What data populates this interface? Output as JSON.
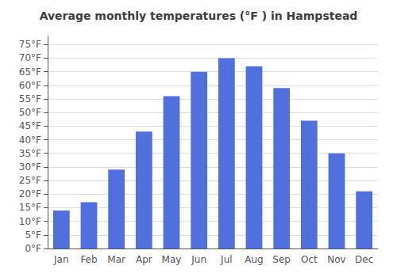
{
  "chart_data": {
    "type": "bar",
    "title": "Average monthly temperatures (°F ) in Hampstead",
    "categories": [
      "Jan",
      "Feb",
      "Mar",
      "Apr",
      "May",
      "Jun",
      "Jul",
      "Aug",
      "Sep",
      "Oct",
      "Nov",
      "Dec"
    ],
    "values": [
      14,
      17,
      29,
      43,
      56,
      65,
      70,
      67,
      59,
      47,
      35,
      21
    ],
    "ylim": [
      0,
      78
    ],
    "yticks": [
      {
        "value": 0,
        "label": "0°F"
      },
      {
        "value": 5,
        "label": "5°F"
      },
      {
        "value": 10,
        "label": "10°F"
      },
      {
        "value": 15,
        "label": "15°F"
      },
      {
        "value": 20,
        "label": "20°F"
      },
      {
        "value": 25,
        "label": "25°F"
      },
      {
        "value": 30,
        "label": "30°F"
      },
      {
        "value": 35,
        "label": "35°F"
      },
      {
        "value": 40,
        "label": "40°F"
      },
      {
        "value": 45,
        "label": "45°F"
      },
      {
        "value": 50,
        "label": "50°F"
      },
      {
        "value": 55,
        "label": "55°F"
      },
      {
        "value": 60,
        "label": "60°F"
      },
      {
        "value": 65,
        "label": "65°F"
      },
      {
        "value": 70,
        "label": "70°F"
      },
      {
        "value": 75,
        "label": "75°F"
      }
    ],
    "grid": true
  }
}
